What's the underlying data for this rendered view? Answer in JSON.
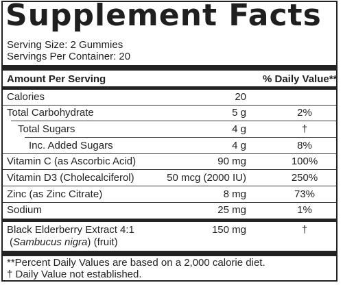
{
  "title": "Supplement Facts",
  "serving_size": "Serving Size: 2 Gummies",
  "servings_per_container": "Servings Per Container: 20",
  "header": {
    "amount_per_serving": "Amount Per Serving",
    "daily_value": "% Daily Value**"
  },
  "rows": [
    {
      "name": "Calories",
      "amount": "20",
      "dv": ""
    },
    {
      "name": "Total Carbohydrate",
      "amount": "5 g",
      "dv": "2%"
    },
    {
      "name": "Total Sugars",
      "amount": "4 g",
      "dv": "†"
    },
    {
      "name": "Inc. Added Sugars",
      "amount": "4 g",
      "dv": "8%"
    },
    {
      "name": "Vitamin C (as Ascorbic Acid)",
      "amount": "90 mg",
      "dv": "100%"
    },
    {
      "name": "Vitamin D3 (Cholecalciferol)",
      "amount": "50 mcg (2000 IU)",
      "dv": "250%"
    },
    {
      "name": "Zinc (as Zinc Citrate)",
      "amount": "8 mg",
      "dv": "73%"
    },
    {
      "name": "Sodium",
      "amount": "25 mg",
      "dv": "1%"
    }
  ],
  "elderberry": {
    "name": "Black Elderberry Extract 4:1",
    "latin_open": "(",
    "latin": "Sambucus nigra",
    "latin_close": ") (fruit)",
    "amount": "150 mg",
    "dv": "†"
  },
  "footnotes": {
    "dv_basis": "**Percent Daily Values are based on a 2,000 calorie diet.",
    "not_established": "† Daily Value not established."
  }
}
